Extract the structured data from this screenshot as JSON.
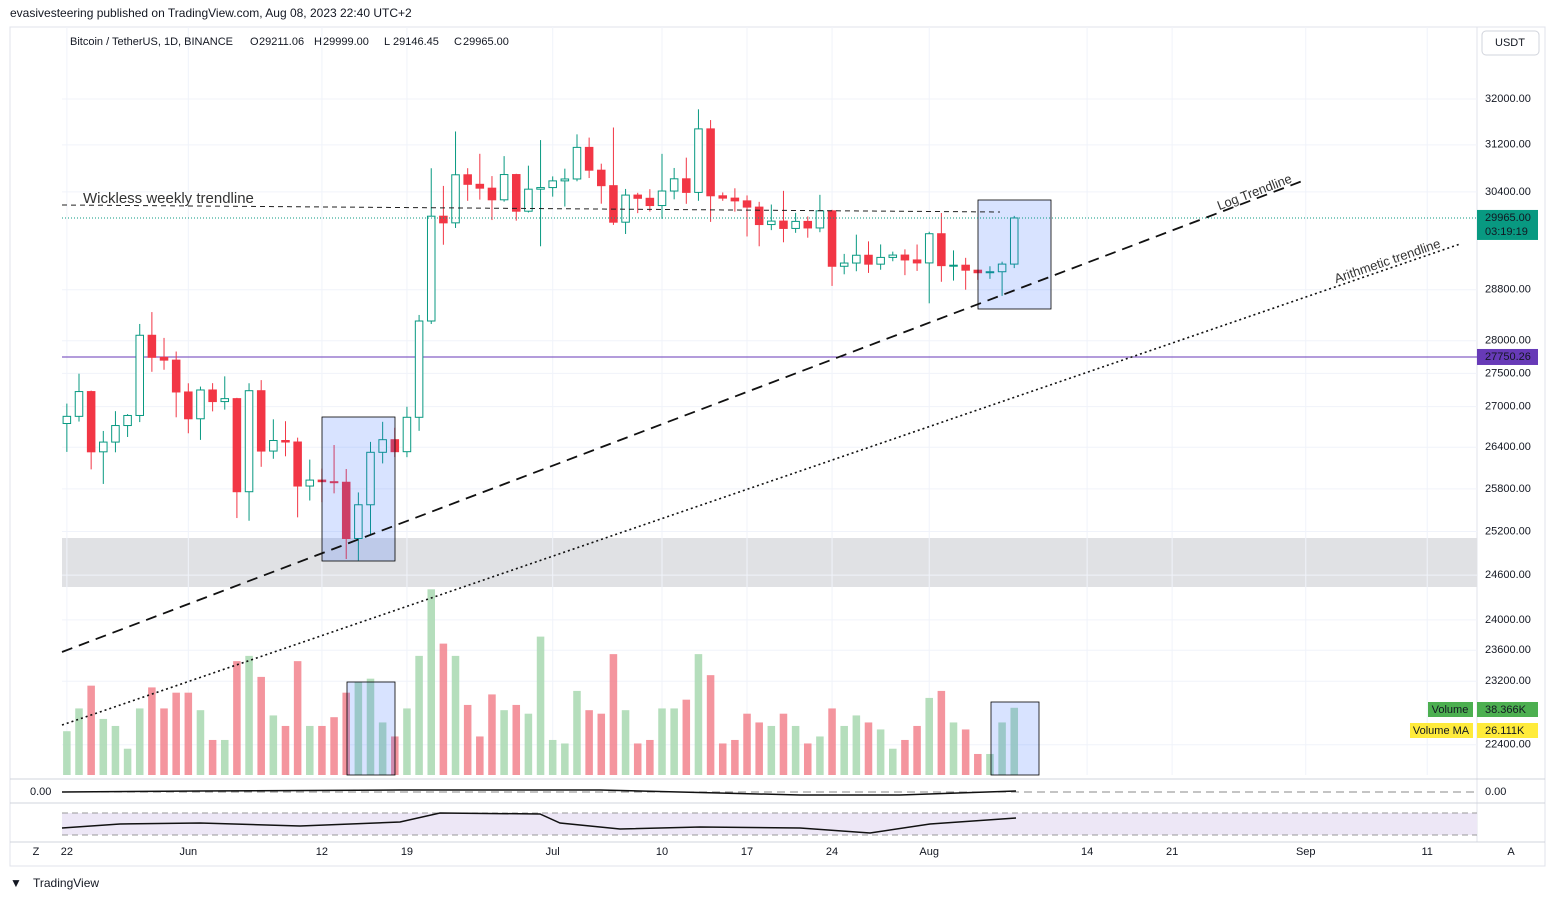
{
  "header": {
    "publisher": "evasivesteering published on TradingView.com, Aug 08, 2023 22:40 UTC+2",
    "footer": "TradingView"
  },
  "chart_data": {
    "type": "candlestick",
    "title": "Bitcoin / TetherUS, 1D, BINANCE",
    "legend_values": [
      [
        "O",
        "29211.06"
      ],
      [
        "H",
        "29999.00"
      ],
      [
        "L",
        "29146.45"
      ],
      [
        "C",
        "29965.00"
      ]
    ],
    "currency": "USDT",
    "log_scale": true,
    "ylim": [
      22029,
      33298
    ],
    "yticks": [
      {
        "value": 32000,
        "label": "32000.00"
      },
      {
        "value": 31200,
        "label": "31200.00"
      },
      {
        "value": 30400,
        "label": "30400.00"
      },
      {
        "value": 28800,
        "label": "28800.00"
      },
      {
        "value": 28000,
        "label": "28000.00"
      },
      {
        "value": 27500,
        "label": "27500.00"
      },
      {
        "value": 27000,
        "label": "27000.00"
      },
      {
        "value": 26400,
        "label": "26400.00"
      },
      {
        "value": 25800,
        "label": "25800.00"
      },
      {
        "value": 25200,
        "label": "25200.00"
      },
      {
        "value": 24600,
        "label": "24600.00"
      },
      {
        "value": 24000,
        "label": "24000.00"
      },
      {
        "value": 23600,
        "label": "23600.00"
      },
      {
        "value": 23200,
        "label": "23200.00"
      },
      {
        "value": 22400,
        "label": "22400.00"
      }
    ],
    "xlim": [
      -0.4,
      116.1
    ],
    "xticks": [
      {
        "value": 0,
        "label": "22"
      },
      {
        "value": 10,
        "label": "Jun"
      },
      {
        "value": 21,
        "label": "12"
      },
      {
        "value": 28,
        "label": "19"
      },
      {
        "value": 40,
        "label": "Jul"
      },
      {
        "value": 49,
        "label": "10"
      },
      {
        "value": 56,
        "label": "17"
      },
      {
        "value": 63,
        "label": "24"
      },
      {
        "value": 71,
        "label": "Aug"
      },
      {
        "value": 84,
        "label": "14"
      },
      {
        "value": 91,
        "label": "21"
      },
      {
        "value": 102,
        "label": "Sep"
      },
      {
        "value": 112,
        "label": "11"
      }
    ],
    "up_color": "#089981",
    "down_color": "#f23645",
    "open": [
      26749,
      26855,
      27225,
      26334,
      26476,
      26719,
      26868,
      28085,
      27745,
      27702,
      27219,
      26819,
      27249,
      27075,
      27119,
      25760,
      27238,
      26345,
      26499,
      26477,
      25841,
      25926,
      25903,
      25895,
      25103,
      25575,
      26327,
      26511,
      26336,
      26841,
      28307,
      29994,
      29884,
      30688,
      30527,
      30462,
      30267,
      30692,
      30077,
      30445,
      30472,
      30585,
      30617,
      31156,
      30766,
      30504,
      29895,
      30346,
      30292,
      30171,
      30414,
      30620,
      30391,
      31476,
      30334,
      30295,
      30249,
      30145,
      29856,
      29913,
      29792,
      29908,
      29800,
      30083,
      29176,
      29228,
      29354,
      29210,
      29319,
      29357,
      29278,
      29230,
      29705,
      29186,
      29193,
      29113,
      29072,
      29088,
      29211.06
    ],
    "high": [
      27045,
      27495,
      27240,
      26639,
      26932,
      26888,
      28261,
      28447,
      28044,
      27834,
      27350,
      27300,
      27352,
      27455,
      27131,
      27350,
      27398,
      26811,
      26783,
      26541,
      26221,
      26091,
      26433,
      26085,
      25750,
      26479,
      26774,
      26686,
      26998,
      28402,
      30800,
      30500,
      31431,
      30800,
      31046,
      30666,
      31006,
      30705,
      30843,
      31282,
      30661,
      30792,
      31381,
      31325,
      30877,
      31500,
      30449,
      30384,
      30445,
      31045,
      30804,
      30980,
      31818,
      31630,
      30390,
      30460,
      30340,
      30233,
      30188,
      30417,
      30050,
      29990,
      30350,
      30100,
      29376,
      29690,
      29580,
      29530,
      29413,
      29450,
      29529,
      29738,
      30047,
      29433,
      29312,
      29119,
      29176,
      29250,
      29999
    ],
    "low": [
      26333,
      26778,
      26080,
      25871,
      26327,
      26551,
      26770,
      27524,
      27555,
      26841,
      26605,
      26508,
      26929,
      26955,
      25388,
      25351,
      26117,
      26233,
      26269,
      25398,
      25635,
      25611,
      25737,
      24820,
      24800,
      25159,
      26166,
      26258,
      26256,
      26641,
      28260,
      29525,
      29800,
      30250,
      30270,
      29930,
      30236,
      29920,
      30055,
      29500,
      30320,
      30155,
      30578,
      30633,
      30202,
      29850,
      29701,
      30045,
      30072,
      29950,
      30275,
      30200,
      30250,
      29900,
      30250,
      30070,
      29660,
      29500,
      29764,
      29565,
      29720,
      29640,
      29730,
      28861,
      29047,
      29096,
      29069,
      29120,
      29257,
      29033,
      29101,
      28585,
      28927,
      28946,
      28800,
      28958,
      28974,
      28702,
      29146.45
    ],
    "close": [
      26855,
      27225,
      26334,
      26476,
      26719,
      26868,
      28085,
      27745,
      27702,
      27219,
      26819,
      27249,
      27075,
      27119,
      25760,
      27238,
      26345,
      26499,
      26477,
      25841,
      25926,
      25903,
      25895,
      25103,
      25575,
      26327,
      26511,
      26336,
      26841,
      28307,
      29994,
      29884,
      30688,
      30527,
      30462,
      30267,
      30692,
      30077,
      30445,
      30472,
      30585,
      30617,
      31156,
      30766,
      30504,
      29895,
      30346,
      30292,
      30171,
      30414,
      30620,
      30391,
      31476,
      30334,
      30295,
      30249,
      30145,
      29856,
      29913,
      29792,
      29908,
      29800,
      30083,
      29176,
      29228,
      29354,
      29210,
      29319,
      29357,
      29278,
      29230,
      29705,
      29186,
      29193,
      29113,
      29072,
      29088,
      29211,
      29965
    ],
    "volume": [
      25000,
      38000,
      51000,
      32000,
      28000,
      15000,
      38000,
      50000,
      38000,
      47000,
      47000,
      37000,
      20000,
      20000,
      65000,
      68000,
      56000,
      34000,
      28000,
      65000,
      28000,
      28000,
      33000,
      47000,
      53000,
      55000,
      30000,
      22000,
      38000,
      68000,
      106000,
      75000,
      68000,
      40000,
      22000,
      46000,
      37000,
      40000,
      35000,
      79000,
      20000,
      18000,
      48000,
      37000,
      35000,
      69000,
      37000,
      18000,
      20000,
      38000,
      38000,
      43000,
      69000,
      57000,
      18000,
      20000,
      35000,
      30000,
      28000,
      35000,
      28000,
      18000,
      22000,
      38000,
      28000,
      34000,
      30000,
      26000,
      15000,
      20000,
      28000,
      44000,
      48000,
      30000,
      26000,
      12000,
      12000,
      30000,
      38366
    ],
    "vlim": [
      0,
      427000
    ],
    "volume_up_color": "#a8d8b0",
    "volume_down_color": "#f2838d",
    "volume_label": "Volume",
    "volume_value": "38.366K",
    "volume_ma_label": "Volume MA",
    "volume_ma_value": "26.111K",
    "last_price": {
      "value": 29965,
      "label": "29965.00"
    },
    "countdown": "03:19:19",
    "level": {
      "value": 27750.26,
      "label": "27750.26"
    },
    "annotations": [
      "Wickless weekly trendline",
      "Log Trendline",
      "Arithmetic trendline"
    ],
    "indicator_labels": [
      "0.00",
      "0.00"
    ],
    "axis_buttons": [
      "Z",
      "A"
    ]
  }
}
